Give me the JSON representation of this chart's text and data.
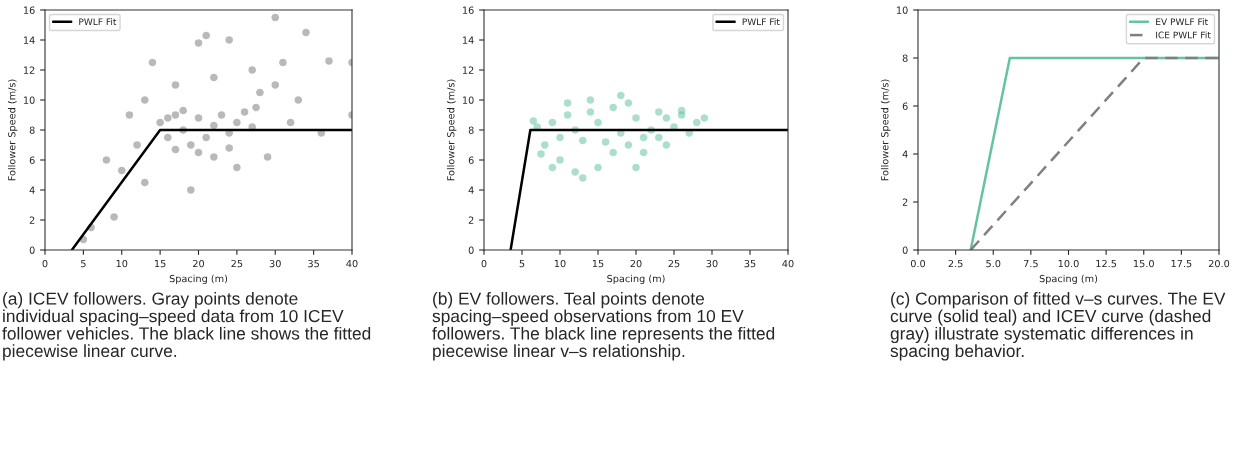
{
  "chart_data": [
    {
      "type": "scatter",
      "xlabel": "Spacing (m)",
      "ylabel": "Follower Speed (m/s)",
      "xlim": [
        0,
        40
      ],
      "ylim": [
        0,
        16
      ],
      "xticks": [
        0,
        5,
        10,
        15,
        20,
        25,
        30,
        35,
        40
      ],
      "yticks": [
        0,
        2,
        4,
        6,
        8,
        10,
        12,
        14,
        16
      ],
      "legend": "top left",
      "grid": false,
      "marker": "circle",
      "annotations": [
        "(a) ICEV followers. Gray points denote individual spacing–speed data from 10 ICEV follower vehicles. The black line shows the fitted piecewise linear curve."
      ],
      "series": [
        {
          "color": "#808080",
          "x": [
            15,
            16,
            17,
            18,
            19,
            20,
            21,
            22,
            23,
            24,
            25,
            26,
            27,
            24,
            20,
            18,
            16,
            27.5,
            22,
            17,
            13,
            14,
            17,
            20,
            24,
            30,
            34,
            31,
            37,
            40,
            40,
            36,
            32,
            29,
            30,
            28,
            12,
            10,
            9,
            6,
            5,
            13,
            19,
            25,
            21,
            11,
            8,
            27,
            22,
            33
          ],
          "values": [
            8.5,
            7.5,
            9,
            8,
            7,
            8.8,
            7.5,
            8.3,
            9,
            7.8,
            8.5,
            9.2,
            8.2,
            6.8,
            6.5,
            9.3,
            8.8,
            9.5,
            6.2,
            6.7,
            10,
            12.5,
            11,
            13.8,
            14,
            15.5,
            14.5,
            12.5,
            12.6,
            12.5,
            9,
            7.8,
            8.5,
            6.2,
            11,
            10.5,
            7,
            5.3,
            2.2,
            1.5,
            0.7,
            4.5,
            4,
            5.5,
            14.3,
            9,
            6,
            12,
            11.5,
            10
          ]
        },
        {
          "type": "line",
          "name": "PWLF Fit",
          "color": "#000000",
          "line_style": "solid",
          "marker": "none",
          "x": [
            3.5,
            15,
            40
          ],
          "values": [
            0,
            8,
            8
          ]
        }
      ]
    },
    {
      "type": "scatter",
      "xlabel": "Spacing (m)",
      "ylabel": "Follower Speed (m/s)",
      "xlim": [
        0,
        40
      ],
      "ylim": [
        0,
        16
      ],
      "xticks": [
        0,
        5,
        10,
        15,
        20,
        25,
        30,
        35,
        40
      ],
      "yticks": [
        0,
        2,
        4,
        6,
        8,
        10,
        12,
        14,
        16
      ],
      "legend": "top right",
      "grid": false,
      "marker": "circle",
      "annotations": [
        "(b) EV followers. Teal points denote spacing–speed observations from 10 EV followers. The black line represents the fitted piecewise linear v–s relationship."
      ],
      "series": [
        {
          "color": "#66c2a5",
          "x": [
            7,
            8,
            9,
            10,
            11,
            12,
            13,
            14,
            15,
            16,
            17,
            18,
            19,
            20,
            21,
            22,
            23,
            24,
            25,
            26,
            27,
            28,
            29,
            12,
            13,
            15,
            10,
            9,
            17,
            20,
            24,
            14,
            11,
            19,
            26,
            6.5,
            7.5,
            21,
            18,
            23
          ],
          "values": [
            8.2,
            7,
            8.5,
            7.5,
            9,
            8,
            7.3,
            9.2,
            8.5,
            7.2,
            9.5,
            10.3,
            7,
            8.8,
            6.5,
            8,
            7.5,
            8.8,
            8.2,
            9,
            7.8,
            8.5,
            8.8,
            5.2,
            4.8,
            5.5,
            6,
            5.5,
            6.5,
            5.5,
            7,
            10,
            9.8,
            9.8,
            9.3,
            8.6,
            6.4,
            7.5,
            7.8,
            9.2
          ]
        },
        {
          "type": "line",
          "name": "PWLF Fit",
          "color": "#000000",
          "line_style": "solid",
          "marker": "none",
          "x": [
            3.5,
            6.1,
            40
          ],
          "values": [
            0,
            8,
            8
          ]
        }
      ]
    },
    {
      "type": "line",
      "xlabel": "Spacing (m)",
      "ylabel": "Follower Speed (m/s)",
      "xlim": [
        0,
        20
      ],
      "ylim": [
        0,
        10
      ],
      "xticks": [
        {
          "value": 0,
          "label": "0.0"
        },
        {
          "value": 2.5,
          "label": "2.5"
        },
        {
          "value": 5,
          "label": "5.0"
        },
        {
          "value": 7.5,
          "label": "7.5"
        },
        {
          "value": 10,
          "label": "10.0"
        },
        {
          "value": 12.5,
          "label": "12.5"
        },
        {
          "value": 15,
          "label": "15.0"
        },
        {
          "value": 17.5,
          "label": "17.5"
        },
        {
          "value": 20,
          "label": "20.0"
        }
      ],
      "yticks": [
        0,
        2,
        4,
        6,
        8,
        10
      ],
      "legend": "top right",
      "grid": false,
      "marker": "none",
      "annotations": [
        "(c) Comparison of fitted v–s curves. The EV curve (solid teal) and ICEV curve (dashed gray) illustrate systematic differences in spacing behavior."
      ],
      "series": [
        {
          "name": "EV PWLF Fit",
          "color": "#66c2a5",
          "line_style": "solid",
          "x": [
            3.5,
            6.1,
            20
          ],
          "values": [
            0,
            8,
            8
          ]
        },
        {
          "name": "ICE PWLF Fit",
          "color": "#808080",
          "line_style": "dashed",
          "x": [
            3.5,
            15,
            20
          ],
          "values": [
            0,
            8,
            8
          ]
        }
      ]
    }
  ]
}
